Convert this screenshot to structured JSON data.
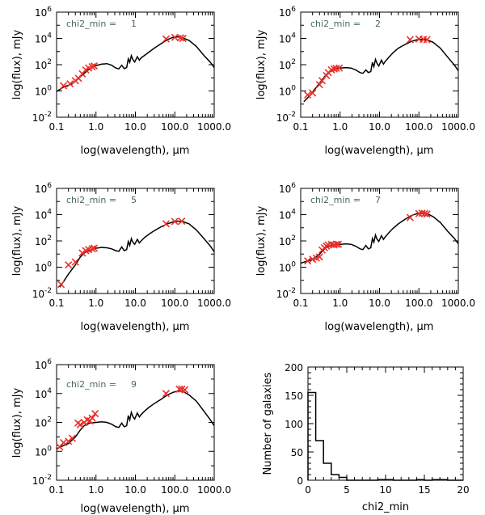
{
  "chart_data": [
    {
      "type": "line",
      "subtype": "sed",
      "panel": "sed-1",
      "annotation_label": "chi2_min =",
      "annotation_value": "1",
      "xlabel": "log(wavelength), μm",
      "ylabel": "log(flux), mJy",
      "xscale": "log",
      "yscale": "log",
      "xlim": [
        0.1,
        1000
      ],
      "ylim": [
        0.01,
        1000000
      ],
      "xticks": [
        0.1,
        1,
        10,
        100,
        1000
      ],
      "xtick_labels": [
        "0.1",
        "1.0",
        "10.0",
        "100.0",
        "1000.0"
      ],
      "yticks_exp": [
        -2,
        0,
        2,
        4,
        6
      ],
      "model": [
        [
          0.1,
          0.9
        ],
        [
          0.15,
          2
        ],
        [
          0.25,
          3.5
        ],
        [
          0.4,
          12
        ],
        [
          0.6,
          35
        ],
        [
          0.8,
          60
        ],
        [
          1.0,
          85
        ],
        [
          1.4,
          110
        ],
        [
          1.9,
          120
        ],
        [
          2.5,
          90
        ],
        [
          3.2,
          55
        ],
        [
          3.8,
          48
        ],
        [
          4.5,
          90
        ],
        [
          5.2,
          50
        ],
        [
          6.0,
          60
        ],
        [
          6.6,
          280
        ],
        [
          7.2,
          150
        ],
        [
          7.9,
          480
        ],
        [
          8.6,
          250
        ],
        [
          9.6,
          160
        ],
        [
          11.2,
          400
        ],
        [
          12.6,
          220
        ],
        [
          14,
          330
        ],
        [
          17,
          500
        ],
        [
          22,
          900
        ],
        [
          30,
          1800
        ],
        [
          45,
          4000
        ],
        [
          65,
          8000
        ],
        [
          90,
          12000
        ],
        [
          120,
          13000
        ],
        [
          160,
          11000
        ],
        [
          230,
          7000
        ],
        [
          350,
          2500
        ],
        [
          550,
          500
        ],
        [
          800,
          150
        ],
        [
          1000,
          60
        ]
      ],
      "points": [
        [
          0.15,
          2.5
        ],
        [
          0.22,
          3.5
        ],
        [
          0.3,
          6
        ],
        [
          0.36,
          9
        ],
        [
          0.45,
          20
        ],
        [
          0.55,
          40
        ],
        [
          0.65,
          55
        ],
        [
          0.8,
          70
        ],
        [
          0.9,
          80
        ],
        [
          60,
          9000
        ],
        [
          100,
          12000
        ],
        [
          140,
          11000
        ],
        [
          160,
          10000
        ]
      ]
    },
    {
      "type": "line",
      "subtype": "sed",
      "panel": "sed-2",
      "annotation_label": "chi2_min =",
      "annotation_value": "2",
      "xlabel": "log(wavelength), μm",
      "ylabel": "log(flux), mJy",
      "xscale": "log",
      "yscale": "log",
      "xlim": [
        0.1,
        1000
      ],
      "ylim": [
        0.01,
        1000000
      ],
      "xticks": [
        0.1,
        1,
        10,
        100,
        1000
      ],
      "xtick_labels": [
        "0.1",
        "1.0",
        "10.0",
        "100.0",
        "1000.0"
      ],
      "yticks_exp": [
        -2,
        0,
        2,
        4,
        6
      ],
      "model": [
        [
          0.12,
          0.15
        ],
        [
          0.15,
          0.3
        ],
        [
          0.2,
          0.8
        ],
        [
          0.3,
          4
        ],
        [
          0.4,
          12
        ],
        [
          0.5,
          25
        ],
        [
          0.7,
          45
        ],
        [
          1.0,
          55
        ],
        [
          1.4,
          60
        ],
        [
          1.9,
          55
        ],
        [
          2.5,
          40
        ],
        [
          3.2,
          25
        ],
        [
          3.8,
          22
        ],
        [
          4.5,
          40
        ],
        [
          5.2,
          25
        ],
        [
          6.0,
          30
        ],
        [
          6.6,
          150
        ],
        [
          7.2,
          70
        ],
        [
          7.9,
          250
        ],
        [
          8.6,
          130
        ],
        [
          9.6,
          80
        ],
        [
          11.2,
          220
        ],
        [
          12.6,
          110
        ],
        [
          14,
          180
        ],
        [
          17,
          350
        ],
        [
          22,
          800
        ],
        [
          30,
          1800
        ],
        [
          45,
          3500
        ],
        [
          65,
          6000
        ],
        [
          90,
          8000
        ],
        [
          120,
          8500
        ],
        [
          160,
          8000
        ],
        [
          230,
          5000
        ],
        [
          350,
          1800
        ],
        [
          550,
          350
        ],
        [
          800,
          90
        ],
        [
          1000,
          35
        ]
      ],
      "points": [
        [
          0.15,
          0.5
        ],
        [
          0.2,
          0.7
        ],
        [
          0.3,
          3
        ],
        [
          0.35,
          6
        ],
        [
          0.45,
          15
        ],
        [
          0.5,
          25
        ],
        [
          0.6,
          40
        ],
        [
          0.7,
          48
        ],
        [
          0.8,
          52
        ],
        [
          0.95,
          55
        ],
        [
          60,
          8000
        ],
        [
          100,
          9000
        ],
        [
          130,
          8500
        ],
        [
          160,
          8000
        ]
      ]
    },
    {
      "type": "line",
      "subtype": "sed",
      "panel": "sed-5",
      "annotation_label": "chi2_min =",
      "annotation_value": "5",
      "xlabel": "log(wavelength), μm",
      "ylabel": "log(flux), mJy",
      "xscale": "log",
      "yscale": "log",
      "xlim": [
        0.1,
        1000
      ],
      "ylim": [
        0.01,
        1000000
      ],
      "xticks": [
        0.1,
        1,
        10,
        100,
        1000
      ],
      "xtick_labels": [
        "0.1",
        "1.0",
        "10.0",
        "100.0",
        "1000.0"
      ],
      "yticks_exp": [
        -2,
        0,
        2,
        4,
        6
      ],
      "model": [
        [
          0.12,
          0.03
        ],
        [
          0.15,
          0.08
        ],
        [
          0.2,
          0.3
        ],
        [
          0.3,
          1.5
        ],
        [
          0.4,
          6
        ],
        [
          0.5,
          12
        ],
        [
          0.7,
          20
        ],
        [
          1.0,
          28
        ],
        [
          1.4,
          32
        ],
        [
          1.9,
          30
        ],
        [
          2.5,
          25
        ],
        [
          3.2,
          18
        ],
        [
          3.8,
          16
        ],
        [
          4.5,
          35
        ],
        [
          5.2,
          18
        ],
        [
          6.0,
          22
        ],
        [
          6.6,
          90
        ],
        [
          7.2,
          45
        ],
        [
          7.9,
          150
        ],
        [
          8.6,
          80
        ],
        [
          9.6,
          55
        ],
        [
          11.2,
          130
        ],
        [
          12.6,
          70
        ],
        [
          14,
          100
        ],
        [
          17,
          180
        ],
        [
          22,
          320
        ],
        [
          30,
          600
        ],
        [
          45,
          1200
        ],
        [
          65,
          2000
        ],
        [
          90,
          2800
        ],
        [
          120,
          3200
        ],
        [
          160,
          3000
        ],
        [
          230,
          2000
        ],
        [
          350,
          700
        ],
        [
          550,
          150
        ],
        [
          800,
          40
        ],
        [
          1000,
          15
        ]
      ],
      "points": [
        [
          0.13,
          0.05
        ],
        [
          0.2,
          1.5
        ],
        [
          0.3,
          2.5
        ],
        [
          0.45,
          12
        ],
        [
          0.55,
          18
        ],
        [
          0.65,
          22
        ],
        [
          0.8,
          25
        ],
        [
          0.9,
          28
        ],
        [
          60,
          2000
        ],
        [
          100,
          3000
        ],
        [
          150,
          3200
        ]
      ]
    },
    {
      "type": "line",
      "subtype": "sed",
      "panel": "sed-7",
      "annotation_label": "chi2_min =",
      "annotation_value": "7",
      "xlabel": "log(wavelength), μm",
      "ylabel": "log(flux), mJy",
      "xscale": "log",
      "yscale": "log",
      "xlim": [
        0.1,
        1000
      ],
      "ylim": [
        0.01,
        1000000
      ],
      "xticks": [
        0.1,
        1,
        10,
        100,
        1000
      ],
      "xtick_labels": [
        "0.1",
        "1.0",
        "10.0",
        "100.0",
        "1000.0"
      ],
      "yticks_exp": [
        -2,
        0,
        2,
        4,
        6
      ],
      "model": [
        [
          0.1,
          2
        ],
        [
          0.15,
          3
        ],
        [
          0.2,
          4
        ],
        [
          0.3,
          10
        ],
        [
          0.4,
          25
        ],
        [
          0.5,
          40
        ],
        [
          0.7,
          50
        ],
        [
          1.0,
          55
        ],
        [
          1.4,
          60
        ],
        [
          1.9,
          55
        ],
        [
          2.5,
          40
        ],
        [
          3.2,
          25
        ],
        [
          3.8,
          22
        ],
        [
          4.5,
          45
        ],
        [
          5.2,
          25
        ],
        [
          6.0,
          30
        ],
        [
          6.6,
          150
        ],
        [
          7.2,
          80
        ],
        [
          7.9,
          280
        ],
        [
          8.6,
          140
        ],
        [
          9.6,
          90
        ],
        [
          11.2,
          250
        ],
        [
          12.6,
          130
        ],
        [
          14,
          200
        ],
        [
          17,
          400
        ],
        [
          22,
          900
        ],
        [
          30,
          2000
        ],
        [
          45,
          4500
        ],
        [
          65,
          8500
        ],
        [
          90,
          12000
        ],
        [
          120,
          14000
        ],
        [
          160,
          12000
        ],
        [
          230,
          7000
        ],
        [
          350,
          2500
        ],
        [
          550,
          500
        ],
        [
          800,
          150
        ],
        [
          1000,
          60
        ]
      ],
      "points": [
        [
          0.15,
          3
        ],
        [
          0.2,
          4
        ],
        [
          0.25,
          5
        ],
        [
          0.3,
          6
        ],
        [
          0.35,
          20
        ],
        [
          0.4,
          30
        ],
        [
          0.45,
          40
        ],
        [
          0.5,
          50
        ],
        [
          0.6,
          55
        ],
        [
          0.7,
          50
        ],
        [
          0.8,
          55
        ],
        [
          0.9,
          55
        ],
        [
          60,
          6000
        ],
        [
          100,
          12000
        ],
        [
          120,
          13000
        ],
        [
          140,
          12000
        ],
        [
          160,
          11000
        ]
      ]
    },
    {
      "type": "line",
      "subtype": "sed",
      "panel": "sed-9",
      "annotation_label": "chi2_min =",
      "annotation_value": "9",
      "xlabel": "log(wavelength), μm",
      "ylabel": "log(flux), mJy",
      "xscale": "log",
      "yscale": "log",
      "xlim": [
        0.1,
        1000
      ],
      "ylim": [
        0.01,
        1000000
      ],
      "xticks": [
        0.1,
        1,
        10,
        100,
        1000
      ],
      "xtick_labels": [
        "0.1",
        "1.0",
        "10.0",
        "100.0",
        "1000.0"
      ],
      "yticks_exp": [
        -2,
        0,
        2,
        4,
        6
      ],
      "model": [
        [
          0.1,
          1.5
        ],
        [
          0.15,
          2.5
        ],
        [
          0.2,
          3.5
        ],
        [
          0.3,
          10
        ],
        [
          0.4,
          30
        ],
        [
          0.5,
          60
        ],
        [
          0.7,
          90
        ],
        [
          1.0,
          100
        ],
        [
          1.4,
          110
        ],
        [
          1.9,
          100
        ],
        [
          2.5,
          75
        ],
        [
          3.2,
          50
        ],
        [
          3.8,
          45
        ],
        [
          4.5,
          90
        ],
        [
          5.2,
          50
        ],
        [
          6.0,
          60
        ],
        [
          6.6,
          300
        ],
        [
          7.2,
          150
        ],
        [
          7.9,
          500
        ],
        [
          8.6,
          260
        ],
        [
          9.6,
          170
        ],
        [
          11.2,
          450
        ],
        [
          12.6,
          240
        ],
        [
          14,
          350
        ],
        [
          17,
          600
        ],
        [
          22,
          1100
        ],
        [
          30,
          2000
        ],
        [
          45,
          4000
        ],
        [
          65,
          8000
        ],
        [
          90,
          12000
        ],
        [
          120,
          15000
        ],
        [
          160,
          14000
        ],
        [
          230,
          8000
        ],
        [
          350,
          3000
        ],
        [
          550,
          600
        ],
        [
          800,
          150
        ],
        [
          1000,
          60
        ]
      ],
      "points": [
        [
          0.12,
          2
        ],
        [
          0.15,
          4
        ],
        [
          0.2,
          5
        ],
        [
          0.25,
          8
        ],
        [
          0.35,
          90
        ],
        [
          0.4,
          70
        ],
        [
          0.5,
          100
        ],
        [
          0.6,
          150
        ],
        [
          0.7,
          130
        ],
        [
          0.8,
          200
        ],
        [
          0.95,
          400
        ],
        [
          60,
          10000
        ],
        [
          130,
          20000
        ],
        [
          150,
          20000
        ],
        [
          180,
          18000
        ]
      ]
    },
    {
      "type": "bar",
      "subtype": "histogram",
      "panel": "histogram",
      "xlabel": "chi2_min",
      "ylabel": "Number of galaxies",
      "xlim": [
        0,
        20
      ],
      "ylim": [
        0,
        200
      ],
      "xticks": [
        0,
        5,
        10,
        15,
        20
      ],
      "yticks": [
        0,
        50,
        100,
        150,
        200
      ],
      "bin_width": 1,
      "bin_edges_start": [
        0,
        1,
        2,
        3,
        4,
        5,
        6,
        7,
        8,
        9,
        10,
        11,
        12,
        13,
        14,
        15,
        16,
        17,
        18,
        19
      ],
      "values": [
        155,
        70,
        30,
        10,
        5,
        0,
        0,
        0,
        0,
        1,
        1,
        0,
        0,
        0,
        1,
        0,
        1,
        1,
        0,
        0
      ]
    }
  ]
}
